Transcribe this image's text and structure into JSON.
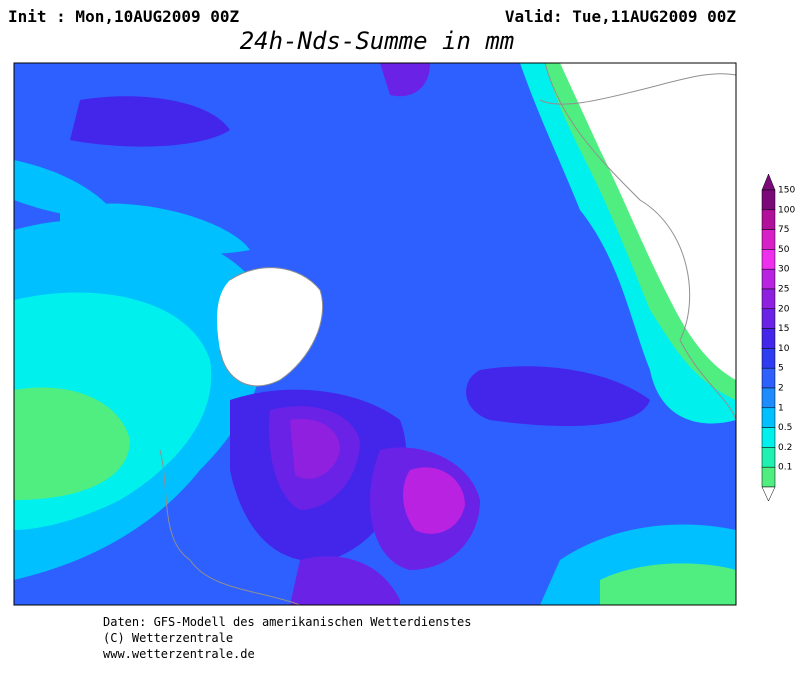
{
  "header": {
    "init": "Init : Mon,10AUG2009 00Z",
    "valid": "Valid: Tue,11AUG2009 00Z",
    "title": "24h-Nds-Summe in mm"
  },
  "legend": {
    "levels": [
      {
        "label": "150",
        "color": "#7a0a7a"
      },
      {
        "label": "100",
        "color": "#b0109a"
      },
      {
        "label": "75",
        "color": "#d820c8"
      },
      {
        "label": "50",
        "color": "#ee30ee"
      },
      {
        "label": "30",
        "color": "#b822e0"
      },
      {
        "label": "25",
        "color": "#9020e0"
      },
      {
        "label": "20",
        "color": "#6a22e6"
      },
      {
        "label": "15",
        "color": "#4426ea"
      },
      {
        "label": "10",
        "color": "#2e3cf2"
      },
      {
        "label": "5",
        "color": "#2e60ff"
      },
      {
        "label": "2",
        "color": "#1e8cff"
      },
      {
        "label": "1",
        "color": "#00c0ff"
      },
      {
        "label": "0.5",
        "color": "#00f0ee"
      },
      {
        "label": "0.2",
        "color": "#20f0b0"
      },
      {
        "label": "0.1",
        "color": "#50ee80"
      }
    ]
  },
  "footer": {
    "lines": [
      "Daten: GFS-Modell des amerikanischen Wetterdienstes",
      "(C) Wetterzentrale",
      "www.wetterzentrale.de"
    ]
  }
}
